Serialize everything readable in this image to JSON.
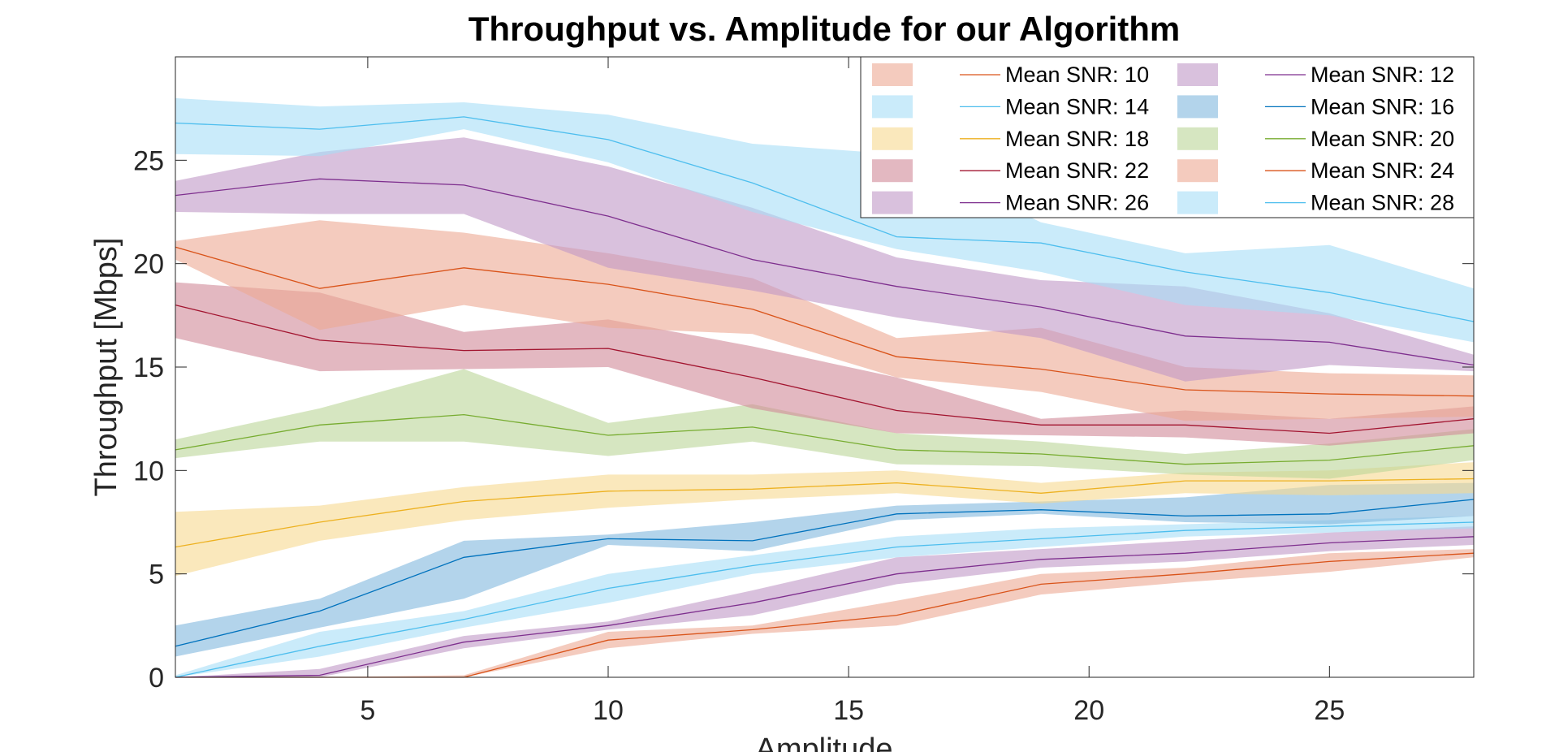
{
  "chart_data": {
    "type": "area",
    "title": "Throughput vs. Amplitude for our Algorithm",
    "xlabel": "Amplitude",
    "ylabel": "Throughput [Mbps]",
    "xlim": [
      1,
      28
    ],
    "ylim": [
      0,
      30
    ],
    "xticks": [
      5,
      10,
      15,
      20,
      25
    ],
    "yticks": [
      0,
      5,
      10,
      15,
      20,
      25
    ],
    "grid": false,
    "legend_position": "top-right",
    "x": [
      1,
      4,
      7,
      10,
      13,
      16,
      19,
      22,
      25,
      28
    ],
    "series": [
      {
        "name": "Mean SNR: 10",
        "color": "#D95319",
        "fill": "#EDA993",
        "mean": [
          0,
          0,
          0,
          1.8,
          2.3,
          3.0,
          4.5,
          5.0,
          5.6,
          6.0
        ],
        "lower": [
          0,
          0,
          0,
          1.4,
          2.1,
          2.5,
          4.0,
          4.6,
          5.1,
          5.8
        ],
        "upper": [
          0,
          0,
          0.1,
          2.2,
          2.5,
          3.7,
          5.0,
          5.3,
          6.0,
          6.2
        ]
      },
      {
        "name": "Mean SNR: 12",
        "color": "#7E2F8E",
        "fill": "#BF97C7",
        "mean": [
          0,
          0.1,
          1.7,
          2.5,
          3.6,
          5.0,
          5.7,
          6.0,
          6.5,
          6.8
        ],
        "lower": [
          0,
          0,
          1.4,
          2.3,
          3.0,
          4.5,
          5.3,
          5.6,
          6.1,
          6.4
        ],
        "upper": [
          0,
          0.4,
          2.0,
          2.7,
          4.2,
          5.8,
          6.2,
          6.6,
          7.0,
          7.3
        ]
      },
      {
        "name": "Mean SNR: 14",
        "color": "#4DBEEE",
        "fill": "#A6DEF6",
        "mean": [
          0,
          1.5,
          2.8,
          4.3,
          5.4,
          6.3,
          6.7,
          7.1,
          7.3,
          7.5
        ],
        "lower": [
          0,
          1.0,
          2.4,
          3.6,
          5.0,
          5.8,
          6.3,
          6.8,
          7.0,
          7.2
        ],
        "upper": [
          0.1,
          2.2,
          3.2,
          5.0,
          5.9,
          6.8,
          7.2,
          7.4,
          7.6,
          7.8
        ]
      },
      {
        "name": "Mean SNR: 16",
        "color": "#0072BD",
        "fill": "#80B8DE",
        "mean": [
          1.5,
          3.2,
          5.8,
          6.7,
          6.6,
          7.9,
          8.1,
          7.8,
          7.9,
          8.6
        ],
        "lower": [
          1.0,
          2.4,
          3.8,
          6.4,
          6.1,
          7.6,
          7.9,
          7.5,
          7.4,
          7.8
        ],
        "upper": [
          2.5,
          3.8,
          6.6,
          6.9,
          7.5,
          8.3,
          8.5,
          8.7,
          9.3,
          9.4
        ]
      },
      {
        "name": "Mean SNR: 18",
        "color": "#EDB120",
        "fill": "#F6D890",
        "mean": [
          6.3,
          7.5,
          8.5,
          9.0,
          9.1,
          9.4,
          8.9,
          9.5,
          9.5,
          9.6
        ],
        "lower": [
          4.9,
          6.6,
          7.6,
          8.2,
          8.6,
          8.9,
          8.4,
          8.9,
          8.8,
          8.9
        ],
        "upper": [
          8.0,
          8.3,
          9.2,
          9.8,
          9.8,
          10.0,
          9.4,
          9.9,
          10.0,
          10.4
        ]
      },
      {
        "name": "Mean SNR: 20",
        "color": "#77AC30",
        "fill": "#BBD598",
        "mean": [
          11.0,
          12.2,
          12.7,
          11.7,
          12.1,
          11.0,
          10.8,
          10.3,
          10.5,
          11.2
        ],
        "lower": [
          10.6,
          11.4,
          11.4,
          10.7,
          11.4,
          10.3,
          10.2,
          9.8,
          9.6,
          10.5
        ],
        "upper": [
          11.5,
          13.0,
          14.9,
          12.3,
          13.2,
          11.8,
          11.4,
          10.8,
          11.3,
          12.0
        ]
      },
      {
        "name": "Mean SNR: 22",
        "color": "#A2142F",
        "fill": "#D08997",
        "mean": [
          18.0,
          16.3,
          15.8,
          15.9,
          14.5,
          12.9,
          12.2,
          12.2,
          11.8,
          12.5
        ],
        "lower": [
          16.4,
          14.8,
          14.9,
          15.0,
          13.0,
          11.8,
          11.7,
          11.6,
          11.2,
          11.8
        ],
        "upper": [
          19.1,
          18.6,
          16.7,
          17.3,
          16.0,
          14.5,
          12.5,
          12.9,
          12.5,
          13.1
        ]
      },
      {
        "name": "Mean SNR: 24",
        "color": "#D95319",
        "fill": "#EDA993",
        "mean": [
          20.8,
          18.8,
          19.8,
          19.0,
          17.8,
          15.5,
          14.9,
          13.9,
          13.7,
          13.6
        ],
        "lower": [
          20.2,
          16.8,
          18.0,
          16.9,
          16.6,
          14.5,
          13.8,
          12.4,
          12.5,
          12.6
        ],
        "upper": [
          21.1,
          22.1,
          21.5,
          20.5,
          19.3,
          16.4,
          16.9,
          15.0,
          14.7,
          14.6
        ]
      },
      {
        "name": "Mean SNR: 26",
        "color": "#7E2F8E",
        "fill": "#BF97C7",
        "mean": [
          23.3,
          24.1,
          23.8,
          22.3,
          20.2,
          18.9,
          17.9,
          16.5,
          16.2,
          15.1
        ],
        "lower": [
          22.5,
          22.4,
          22.4,
          19.8,
          18.7,
          17.4,
          16.4,
          14.3,
          15.1,
          14.8
        ],
        "upper": [
          24.0,
          25.4,
          26.1,
          24.7,
          22.7,
          20.3,
          19.2,
          18.9,
          17.6,
          15.6
        ]
      },
      {
        "name": "Mean SNR: 28",
        "color": "#4DBEEE",
        "fill": "#A6DEF6",
        "mean": [
          26.8,
          26.5,
          27.1,
          26.0,
          23.9,
          21.3,
          21.0,
          19.6,
          18.6,
          17.2
        ],
        "lower": [
          25.3,
          25.2,
          26.5,
          24.9,
          22.5,
          20.7,
          19.6,
          18.0,
          17.5,
          16.2
        ],
        "upper": [
          28.0,
          27.6,
          27.8,
          27.2,
          25.8,
          25.3,
          22.0,
          20.5,
          20.9,
          18.8
        ]
      }
    ]
  }
}
